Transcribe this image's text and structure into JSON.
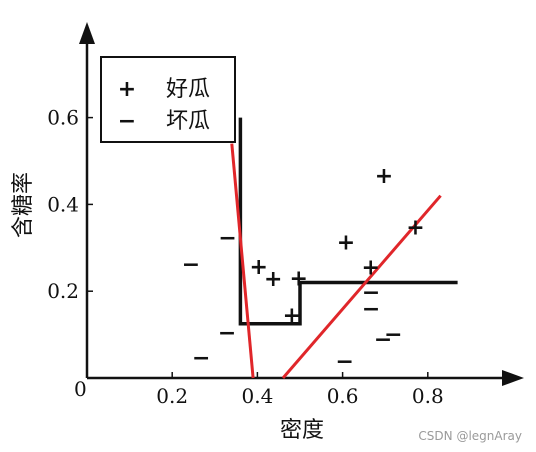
{
  "chart_data": {
    "type": "scatter",
    "xlabel": "密度",
    "ylabel": "含糖率",
    "origin_label": "0",
    "x_ticks": [
      "0.2",
      "0.4",
      "0.6",
      "0.8"
    ],
    "y_ticks": [
      "0.2",
      "0.4",
      "0.6"
    ],
    "xlim": [
      0,
      0.9
    ],
    "ylim": [
      0,
      0.7
    ],
    "legend_position": "top-left",
    "series": [
      {
        "name": "好瓜",
        "marker": "+",
        "points": [
          {
            "x": 0.403,
            "y": 0.258
          },
          {
            "x": 0.437,
            "y": 0.23
          },
          {
            "x": 0.497,
            "y": 0.232
          },
          {
            "x": 0.481,
            "y": 0.146
          },
          {
            "x": 0.608,
            "y": 0.314
          },
          {
            "x": 0.666,
            "y": 0.257
          },
          {
            "x": 0.697,
            "y": 0.468
          },
          {
            "x": 0.771,
            "y": 0.349
          }
        ]
      },
      {
        "name": "坏瓜",
        "marker": "−",
        "points": [
          {
            "x": 0.244,
            "y": 0.264
          },
          {
            "x": 0.268,
            "y": 0.048
          },
          {
            "x": 0.33,
            "y": 0.325
          },
          {
            "x": 0.329,
            "y": 0.106
          },
          {
            "x": 0.605,
            "y": 0.04
          },
          {
            "x": 0.667,
            "y": 0.161
          },
          {
            "x": 0.667,
            "y": 0.199
          },
          {
            "x": 0.695,
            "y": 0.091
          },
          {
            "x": 0.719,
            "y": 0.103
          }
        ]
      }
    ],
    "decision_boundary": {
      "color": "#111111",
      "points": [
        [
          0.36,
          0.6
        ],
        [
          0.36,
          0.125
        ],
        [
          0.5,
          0.125
        ],
        [
          0.5,
          0.22
        ],
        [
          0.87,
          0.22
        ]
      ]
    },
    "red_lines": [
      {
        "color": "#e0262a",
        "points": [
          [
            0.34,
            0.54
          ],
          [
            0.39,
            0.0
          ]
        ]
      },
      {
        "color": "#e0262a",
        "points": [
          [
            0.46,
            0.0
          ],
          [
            0.83,
            0.42
          ]
        ]
      }
    ]
  },
  "colors": {
    "axis": "#111111",
    "boundary": "#111111",
    "red_line": "#e0262a",
    "watermark": "#9a9a9a"
  },
  "watermark": "CSDN @legnAray"
}
